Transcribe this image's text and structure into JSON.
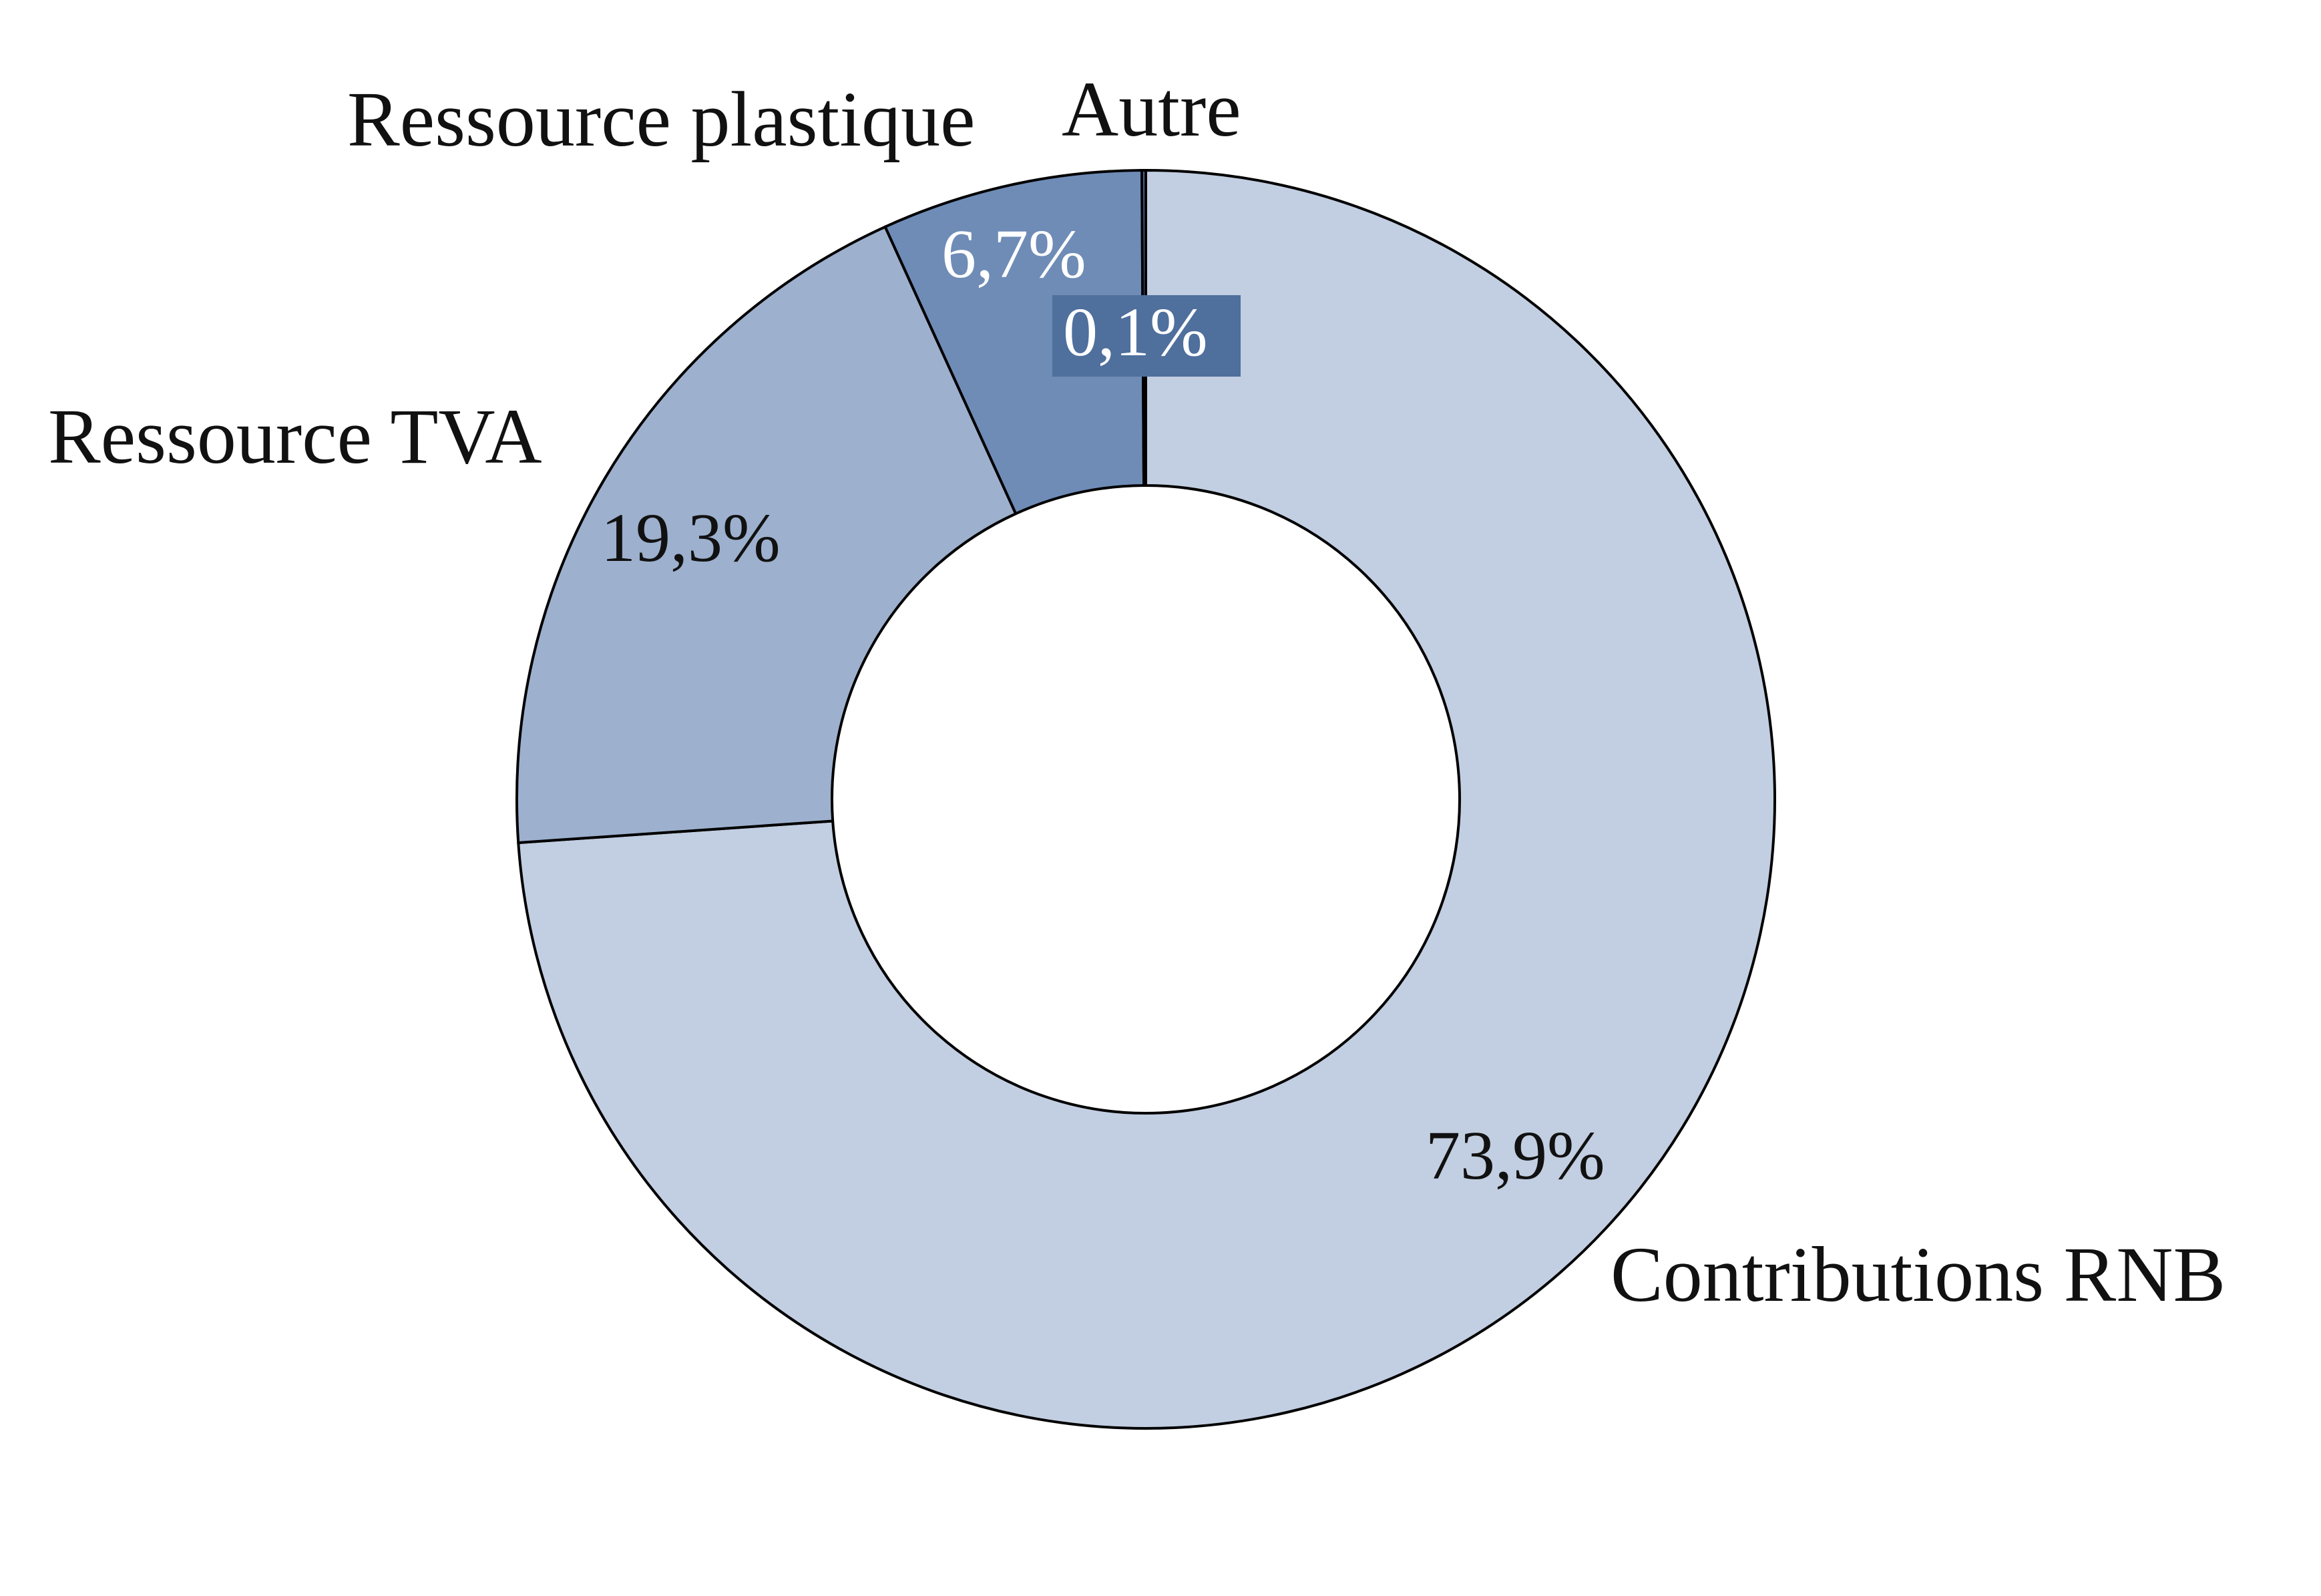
{
  "chart_data": {
    "type": "pie",
    "variant": "donut",
    "categories": [
      "Contributions RNB",
      "Ressource TVA",
      "Ressource plastique",
      "Autre"
    ],
    "values": [
      73.9,
      19.3,
      6.7,
      0.1
    ],
    "value_labels": [
      "73,9%",
      "19,3%",
      "6,7%",
      "0,1%"
    ],
    "colors": [
      "#c2cee1",
      "#9db0ce",
      "#6f8cb7",
      "#4f6f9d"
    ],
    "value_label_colors": [
      "#111111",
      "#111111",
      "#ffffff",
      "#ffffff"
    ],
    "stroke_color": "#000000",
    "start": "12 o'clock",
    "direction": "clockwise",
    "legend": "none (category labels placed beside slices)",
    "grid": false
  }
}
